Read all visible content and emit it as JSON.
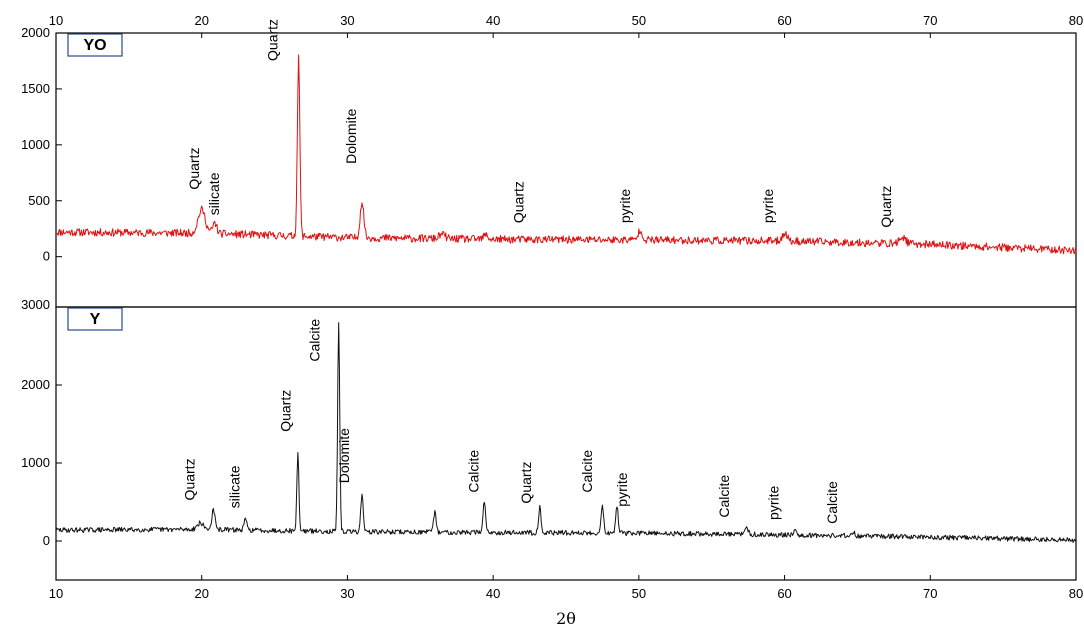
{
  "chart_data": [
    {
      "type": "line",
      "panel_label": "YO",
      "color": "#e01010",
      "xlim": [
        10,
        80
      ],
      "ylim": [
        -450,
        2000
      ],
      "y_ticks": [
        "0",
        "500",
        "1000",
        "1500",
        "2000"
      ],
      "x_ticks_top": [
        "10",
        "20",
        "30",
        "40",
        "50",
        "60",
        "70",
        "80"
      ],
      "baseline": [
        [
          10,
          220
        ],
        [
          20,
          210
        ],
        [
          30,
          170
        ],
        [
          40,
          155
        ],
        [
          50,
          150
        ],
        [
          60,
          140
        ],
        [
          70,
          110
        ],
        [
          80,
          55
        ]
      ],
      "peaks": [
        {
          "x": 20.0,
          "y": 420,
          "w": 0.35
        },
        {
          "x": 20.9,
          "y": 300,
          "w": 0.2
        },
        {
          "x": 26.65,
          "y": 1770,
          "w": 0.12
        },
        {
          "x": 31.0,
          "y": 490,
          "w": 0.18
        },
        {
          "x": 36.5,
          "y": 200,
          "w": 0.3
        },
        {
          "x": 39.5,
          "y": 195,
          "w": 0.2
        },
        {
          "x": 50.1,
          "y": 240,
          "w": 0.2
        },
        {
          "x": 60.0,
          "y": 210,
          "w": 0.25
        },
        {
          "x": 68.1,
          "y": 175,
          "w": 0.3
        }
      ],
      "annotations": [
        {
          "text": "Quartz",
          "x": 19.8,
          "y": 600
        },
        {
          "text": "silicate",
          "x": 21.2,
          "y": 370
        },
        {
          "text": "Quartz",
          "x": 25.2,
          "y": 1750
        },
        {
          "text": "Dolomite",
          "x": 30.6,
          "y": 830
        },
        {
          "text": "Quartz",
          "x": 42.1,
          "y": 300
        },
        {
          "text": "pyrite",
          "x": 49.4,
          "y": 300
        },
        {
          "text": "pyrite",
          "x": 59.2,
          "y": 300
        },
        {
          "text": "Quartz",
          "x": 67.3,
          "y": 260
        }
      ]
    },
    {
      "type": "line",
      "panel_label": "Y",
      "color": "#111111",
      "xlabel": "2θ",
      "xlim": [
        10,
        80
      ],
      "ylim": [
        -500,
        3000
      ],
      "y_ticks": [
        "0",
        "1000",
        "2000",
        "3000"
      ],
      "x_ticks": [
        "10",
        "20",
        "30",
        "40",
        "50",
        "60",
        "70",
        "80"
      ],
      "baseline": [
        [
          10,
          140
        ],
        [
          20,
          150
        ],
        [
          30,
          120
        ],
        [
          40,
          110
        ],
        [
          50,
          100
        ],
        [
          60,
          80
        ],
        [
          70,
          50
        ],
        [
          80,
          10
        ]
      ],
      "peaks": [
        {
          "x": 19.9,
          "y": 230,
          "w": 0.3
        },
        {
          "x": 20.8,
          "y": 400,
          "w": 0.15
        },
        {
          "x": 23.0,
          "y": 290,
          "w": 0.12
        },
        {
          "x": 26.6,
          "y": 1120,
          "w": 0.1
        },
        {
          "x": 29.4,
          "y": 2770,
          "w": 0.1
        },
        {
          "x": 31.0,
          "y": 600,
          "w": 0.12
        },
        {
          "x": 36.0,
          "y": 380,
          "w": 0.12
        },
        {
          "x": 39.4,
          "y": 520,
          "w": 0.12
        },
        {
          "x": 43.2,
          "y": 430,
          "w": 0.12
        },
        {
          "x": 47.5,
          "y": 460,
          "w": 0.12
        },
        {
          "x": 48.5,
          "y": 440,
          "w": 0.12
        },
        {
          "x": 57.4,
          "y": 170,
          "w": 0.15
        },
        {
          "x": 60.7,
          "y": 140,
          "w": 0.15
        },
        {
          "x": 64.7,
          "y": 120,
          "w": 0.15
        }
      ],
      "annotations": [
        {
          "text": "Quartz",
          "x": 19.5,
          "y": 520
        },
        {
          "text": "silicate",
          "x": 22.6,
          "y": 420
        },
        {
          "text": "Quartz",
          "x": 26.1,
          "y": 1400
        },
        {
          "text": "Calcite",
          "x": 28.1,
          "y": 2300
        },
        {
          "text": "Dolomite",
          "x": 30.1,
          "y": 740
        },
        {
          "text": "Calcite",
          "x": 39.0,
          "y": 620
        },
        {
          "text": "Quartz",
          "x": 42.6,
          "y": 480
        },
        {
          "text": "Calcite",
          "x": 46.8,
          "y": 620
        },
        {
          "text": "pyrite",
          "x": 49.2,
          "y": 440
        },
        {
          "text": "Calcite",
          "x": 56.2,
          "y": 300
        },
        {
          "text": "pyrite",
          "x": 59.6,
          "y": 270
        },
        {
          "text": "Calcite",
          "x": 63.6,
          "y": 220
        }
      ]
    }
  ]
}
